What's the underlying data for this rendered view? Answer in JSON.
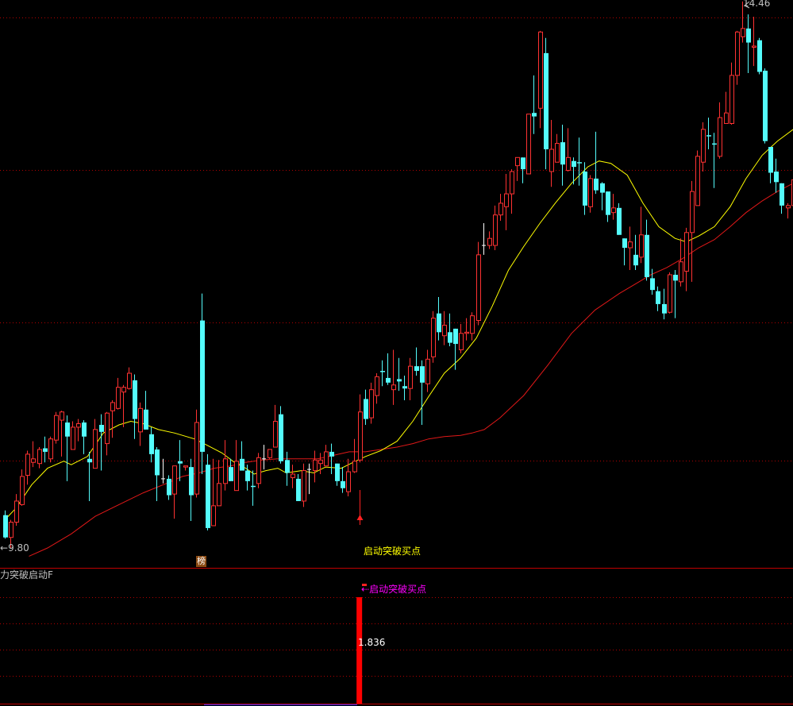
{
  "main_panel": {
    "high_label": "14.46",
    "low_label": "9.80",
    "signal_label": "启动突破买点",
    "badge_label": "榜"
  },
  "sub_panel": {
    "title": "力突破启动F",
    "signal_label": "启动突破买点",
    "bar_value_label": "1.836"
  },
  "colors": {
    "background": "#000000",
    "up": "#ff3232",
    "down": "#54fcfc",
    "doji": "#ffffff",
    "ma_short": "#ffff00",
    "ma_long": "#e01818",
    "grid": "#b00000",
    "signal_bar": "#ff0000"
  },
  "chart_data": [
    {
      "type": "candlestick",
      "price_range": [
        9.8,
        14.46
      ],
      "grid": true,
      "candles": [
        [
          10.08,
          10.12,
          9.88,
          9.89
        ],
        [
          9.89,
          10.04,
          9.8,
          10.02
        ],
        [
          10.02,
          10.26,
          9.99,
          10.2
        ],
        [
          10.17,
          10.47,
          10.16,
          10.41
        ],
        [
          10.42,
          10.63,
          10.34,
          10.6
        ],
        [
          10.53,
          10.71,
          10.49,
          10.56
        ],
        [
          10.52,
          10.66,
          10.48,
          10.64
        ],
        [
          10.65,
          10.75,
          10.53,
          10.62
        ],
        [
          10.56,
          10.75,
          10.53,
          10.73
        ],
        [
          10.72,
          10.96,
          10.69,
          10.93
        ],
        [
          10.89,
          10.97,
          10.58,
          10.96
        ],
        [
          10.87,
          10.93,
          10.37,
          10.75
        ],
        [
          10.64,
          10.88,
          10.64,
          10.83
        ],
        [
          10.83,
          10.9,
          10.71,
          10.86
        ],
        [
          10.87,
          10.89,
          10.6,
          10.75
        ],
        [
          10.56,
          10.62,
          10.2,
          10.53
        ],
        [
          10.48,
          10.9,
          10.48,
          10.81
        ],
        [
          10.85,
          10.94,
          10.46,
          10.79
        ],
        [
          10.69,
          10.96,
          10.59,
          10.95
        ],
        [
          10.97,
          11.06,
          10.74,
          11.04
        ],
        [
          10.99,
          11.25,
          10.98,
          11.17
        ],
        [
          11.13,
          11.19,
          10.83,
          11.17
        ],
        [
          11.16,
          11.34,
          11.15,
          11.29
        ],
        [
          11.23,
          11.28,
          10.73,
          10.9
        ],
        [
          10.79,
          11.04,
          10.67,
          10.99
        ],
        [
          10.98,
          11.14,
          10.81,
          10.81
        ],
        [
          10.77,
          10.83,
          10.53,
          10.6
        ],
        [
          10.64,
          10.66,
          10.2,
          10.42
        ],
        [
          10.39,
          10.56,
          10.35,
          10.39
        ],
        [
          10.39,
          10.42,
          10.21,
          10.25
        ],
        [
          10.26,
          10.5,
          10.05,
          10.5
        ],
        [
          10.54,
          10.72,
          10.37,
          10.52
        ],
        [
          10.49,
          10.5,
          10.46,
          10.5
        ],
        [
          10.49,
          10.56,
          10.03,
          10.25
        ],
        [
          10.26,
          10.98,
          10.23,
          10.87
        ],
        [
          11.74,
          11.97,
          10.43,
          10.62
        ],
        [
          10.51,
          10.6,
          9.95,
          9.97
        ],
        [
          9.99,
          10.56,
          9.99,
          10.16
        ],
        [
          10.16,
          10.55,
          10.16,
          10.35
        ],
        [
          10.35,
          10.72,
          10.29,
          10.56
        ],
        [
          10.49,
          10.56,
          10.37,
          10.37
        ],
        [
          10.29,
          10.72,
          10.29,
          10.54
        ],
        [
          10.56,
          10.71,
          10.46,
          10.46
        ],
        [
          10.46,
          10.51,
          10.29,
          10.37
        ],
        [
          10.33,
          10.46,
          10.16,
          10.32
        ],
        [
          10.35,
          10.61,
          10.31,
          10.57
        ],
        [
          10.56,
          10.68,
          10.47,
          10.56
        ],
        [
          10.57,
          10.64,
          10.56,
          10.64
        ],
        [
          10.66,
          11.02,
          10.66,
          10.88
        ],
        [
          10.94,
          11.01,
          10.52,
          10.54
        ],
        [
          10.55,
          10.62,
          10.33,
          10.44
        ],
        [
          10.4,
          10.51,
          10.31,
          10.43
        ],
        [
          10.39,
          10.43,
          10.2,
          10.2
        ],
        [
          10.2,
          10.52,
          10.15,
          10.46
        ],
        [
          10.47,
          10.52,
          10.26,
          10.47
        ],
        [
          10.46,
          10.63,
          10.36,
          10.55
        ],
        [
          10.52,
          10.61,
          10.43,
          10.55
        ],
        [
          10.5,
          10.68,
          10.5,
          10.62
        ],
        [
          10.62,
          10.69,
          10.43,
          10.58
        ],
        [
          10.52,
          10.52,
          10.33,
          10.37
        ],
        [
          10.37,
          10.49,
          10.27,
          10.31
        ],
        [
          10.28,
          10.56,
          10.24,
          10.45
        ],
        [
          10.45,
          10.73,
          10.44,
          10.54
        ],
        [
          10.55,
          11.11,
          10.53,
          10.96
        ],
        [
          11.07,
          11.15,
          10.85,
          10.9
        ],
        [
          10.91,
          11.21,
          10.86,
          11.15
        ],
        [
          11.1,
          11.29,
          11.03,
          11.26
        ],
        [
          11.31,
          11.4,
          11.18,
          11.3
        ],
        [
          11.25,
          11.46,
          11.19,
          11.21
        ],
        [
          11.15,
          11.49,
          11.02,
          11.19
        ],
        [
          11.24,
          11.42,
          11.14,
          11.22
        ],
        [
          11.18,
          11.27,
          11.06,
          11.16
        ],
        [
          11.16,
          11.42,
          11.06,
          11.35
        ],
        [
          11.35,
          11.51,
          11.27,
          11.31
        ],
        [
          11.35,
          11.4,
          10.85,
          11.21
        ],
        [
          11.2,
          11.49,
          11.13,
          11.41
        ],
        [
          11.43,
          11.82,
          11.38,
          11.76
        ],
        [
          11.8,
          11.94,
          11.57,
          11.64
        ],
        [
          11.61,
          11.82,
          11.53,
          11.7
        ],
        [
          11.64,
          11.8,
          11.52,
          11.55
        ],
        [
          11.67,
          11.67,
          11.32,
          11.54
        ],
        [
          11.49,
          11.71,
          11.46,
          11.63
        ],
        [
          11.63,
          11.76,
          11.57,
          11.64
        ],
        [
          11.63,
          11.81,
          11.57,
          11.78
        ],
        [
          11.74,
          12.41,
          11.7,
          12.3
        ],
        [
          12.38,
          12.57,
          12.3,
          12.38
        ],
        [
          12.38,
          12.5,
          12.35,
          12.44
        ],
        [
          12.38,
          12.72,
          12.34,
          12.64
        ],
        [
          12.64,
          12.82,
          12.59,
          12.74
        ],
        [
          12.71,
          12.99,
          12.51,
          12.82
        ],
        [
          12.82,
          13.03,
          12.65,
          13.01
        ],
        [
          13.06,
          13.13,
          12.93,
          13.13
        ],
        [
          13.13,
          13.13,
          12.91,
          13.03
        ],
        [
          12.99,
          13.5,
          12.99,
          13.5
        ],
        [
          13.51,
          13.83,
          13.33,
          13.48
        ],
        [
          13.55,
          14.21,
          13.38,
          14.2
        ],
        [
          14.02,
          14.15,
          13.03,
          13.2
        ],
        [
          13.01,
          13.45,
          12.88,
          13.2
        ],
        [
          13.09,
          13.33,
          13.09,
          13.25
        ],
        [
          13.26,
          13.41,
          12.89,
          13.07
        ],
        [
          13.02,
          13.38,
          13.01,
          13.13
        ],
        [
          13.1,
          13.13,
          12.9,
          13.05
        ],
        [
          13.09,
          13.3,
          12.89,
          13.08
        ],
        [
          13.01,
          13.09,
          12.64,
          12.72
        ],
        [
          12.71,
          12.98,
          12.66,
          12.95
        ],
        [
          12.95,
          13.35,
          12.82,
          12.85
        ],
        [
          12.91,
          12.92,
          12.68,
          12.83
        ],
        [
          12.84,
          12.84,
          12.58,
          12.64
        ],
        [
          12.66,
          12.82,
          12.6,
          12.7
        ],
        [
          12.7,
          12.74,
          12.47,
          12.47
        ],
        [
          12.44,
          12.44,
          12.21,
          12.36
        ],
        [
          12.36,
          12.54,
          12.17,
          12.41
        ],
        [
          12.3,
          12.47,
          12.17,
          12.21
        ],
        [
          12.28,
          12.71,
          12.23,
          12.47
        ],
        [
          12.47,
          12.6,
          12.08,
          12.11
        ],
        [
          12.1,
          12.18,
          11.96,
          12.0
        ],
        [
          11.99,
          12.03,
          11.82,
          11.88
        ],
        [
          11.88,
          12.01,
          11.75,
          11.8
        ],
        [
          11.81,
          12.15,
          11.8,
          12.13
        ],
        [
          12.13,
          12.17,
          11.76,
          12.08
        ],
        [
          12.07,
          12.44,
          12.03,
          12.24
        ],
        [
          12.16,
          12.53,
          11.99,
          12.49
        ],
        [
          12.49,
          12.93,
          12.07,
          12.84
        ],
        [
          12.72,
          13.19,
          12.72,
          13.14
        ],
        [
          13.09,
          13.43,
          13.01,
          13.37
        ],
        [
          13.32,
          13.47,
          13.2,
          13.31
        ],
        [
          13.25,
          13.34,
          12.87,
          13.24
        ],
        [
          13.14,
          13.6,
          13.12,
          13.47
        ],
        [
          13.42,
          13.69,
          13.42,
          13.51
        ],
        [
          13.42,
          13.94,
          13.41,
          13.83
        ],
        [
          13.83,
          14.21,
          13.75,
          14.2
        ],
        [
          14.16,
          14.46,
          14.11,
          14.23
        ],
        [
          14.23,
          14.35,
          13.85,
          14.11
        ],
        [
          14.07,
          14.33,
          13.91,
          14.08
        ],
        [
          14.13,
          14.15,
          13.84,
          13.86
        ],
        [
          13.87,
          13.89,
          13.25,
          13.27
        ],
        [
          13.22,
          13.22,
          12.91,
          13.0
        ],
        [
          13.01,
          13.12,
          12.83,
          12.92
        ],
        [
          12.91,
          12.91,
          12.65,
          12.72
        ],
        [
          12.7,
          12.74,
          12.61,
          12.72
        ],
        [
          12.72,
          12.94,
          12.72,
          12.94
        ]
      ],
      "ma_short": [
        [
          0,
          10.04
        ],
        [
          2,
          10.14
        ],
        [
          4.8,
          10.34
        ],
        [
          7.6,
          10.48
        ],
        [
          10.5,
          10.54
        ],
        [
          11.8,
          10.51
        ],
        [
          14.7,
          10.58
        ],
        [
          17.5,
          10.78
        ],
        [
          20.3,
          10.85
        ],
        [
          22.4,
          10.88
        ],
        [
          24.6,
          10.86
        ],
        [
          27.3,
          10.81
        ],
        [
          30.2,
          10.78
        ],
        [
          33.7,
          10.73
        ],
        [
          35.8,
          10.68
        ],
        [
          38.6,
          10.61
        ],
        [
          40.8,
          10.53
        ],
        [
          42.8,
          10.48
        ],
        [
          44.3,
          10.43
        ],
        [
          46.4,
          10.46
        ],
        [
          48.5,
          10.48
        ],
        [
          50,
          10.44
        ],
        [
          52.7,
          10.46
        ],
        [
          54.9,
          10.44
        ],
        [
          57,
          10.49
        ],
        [
          59.8,
          10.48
        ],
        [
          61.9,
          10.53
        ],
        [
          64.1,
          10.58
        ],
        [
          66.8,
          10.63
        ],
        [
          69.7,
          10.71
        ],
        [
          72.5,
          10.88
        ],
        [
          75.3,
          11.09
        ],
        [
          78.1,
          11.29
        ],
        [
          81,
          11.42
        ],
        [
          83.8,
          11.59
        ],
        [
          86.6,
          11.86
        ],
        [
          89.5,
          12.17
        ],
        [
          92.2,
          12.37
        ],
        [
          95.1,
          12.57
        ],
        [
          97.8,
          12.74
        ],
        [
          100.7,
          12.91
        ],
        [
          103.6,
          13.05
        ],
        [
          105.6,
          13.1
        ],
        [
          107.7,
          13.08
        ],
        [
          110.6,
          12.98
        ],
        [
          113.4,
          12.74
        ],
        [
          116.2,
          12.54
        ],
        [
          119.1,
          12.44
        ],
        [
          121.1,
          12.41
        ],
        [
          123.3,
          12.46
        ],
        [
          126.1,
          12.54
        ],
        [
          128.9,
          12.71
        ],
        [
          131.7,
          12.95
        ],
        [
          134.6,
          13.15
        ],
        [
          137.3,
          13.27
        ],
        [
          140.1,
          13.37
        ]
      ],
      "ma_long": [
        [
          4.3,
          9.73
        ],
        [
          7.6,
          9.8
        ],
        [
          11.8,
          9.92
        ],
        [
          16.1,
          10.07
        ],
        [
          20.3,
          10.17
        ],
        [
          24.6,
          10.27
        ],
        [
          28.7,
          10.35
        ],
        [
          31.6,
          10.41
        ],
        [
          34.5,
          10.44
        ],
        [
          37.2,
          10.48
        ],
        [
          40.1,
          10.5
        ],
        [
          42.8,
          10.53
        ],
        [
          45.7,
          10.55
        ],
        [
          48.5,
          10.56
        ],
        [
          55.6,
          10.56
        ],
        [
          58.4,
          10.59
        ],
        [
          61.2,
          10.62
        ],
        [
          64.1,
          10.62
        ],
        [
          66.8,
          10.64
        ],
        [
          69.7,
          10.66
        ],
        [
          72.5,
          10.69
        ],
        [
          75.3,
          10.73
        ],
        [
          78.1,
          10.75
        ],
        [
          81,
          10.76
        ],
        [
          83,
          10.78
        ],
        [
          85.2,
          10.81
        ],
        [
          88,
          10.91
        ],
        [
          92.2,
          11.1
        ],
        [
          96.5,
          11.36
        ],
        [
          100.7,
          11.63
        ],
        [
          104.9,
          11.83
        ],
        [
          109.2,
          11.97
        ],
        [
          112,
          12.05
        ],
        [
          114.8,
          12.13
        ],
        [
          117.6,
          12.19
        ],
        [
          120.5,
          12.27
        ],
        [
          123.3,
          12.36
        ],
        [
          126.1,
          12.43
        ],
        [
          128.9,
          12.54
        ],
        [
          131.7,
          12.66
        ],
        [
          134.6,
          12.76
        ],
        [
          137.3,
          12.84
        ],
        [
          140.1,
          12.91
        ]
      ],
      "signal_index": 63
    },
    {
      "type": "bar",
      "title": "力突破启动F",
      "signal_index": 63,
      "value": 1.836
    }
  ]
}
